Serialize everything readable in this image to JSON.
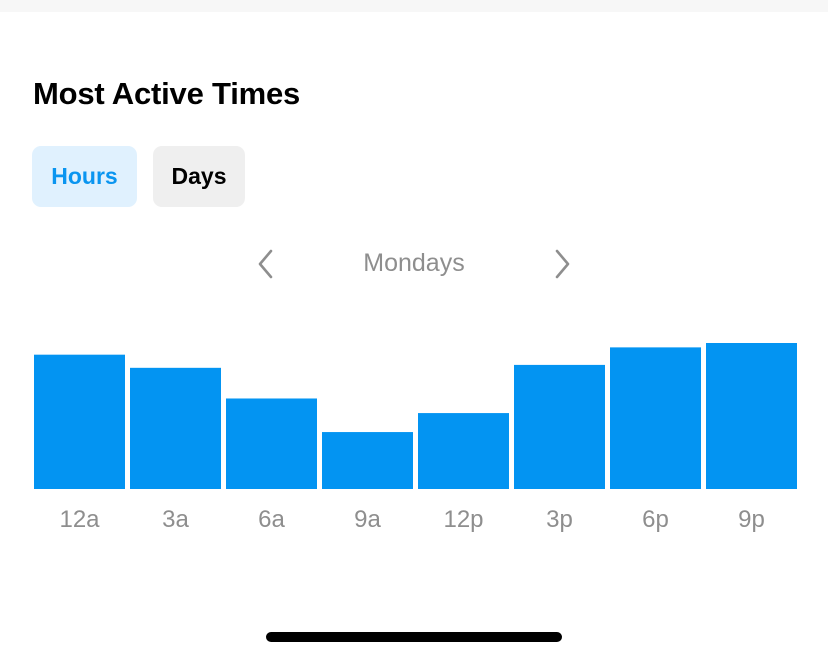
{
  "header": {
    "title": "Most Active Times"
  },
  "segments": {
    "hours_label": "Hours",
    "days_label": "Days",
    "active": "Hours"
  },
  "day_nav": {
    "current_day": "Mondays",
    "prev_icon": "chevron-left-icon",
    "next_icon": "chevron-right-icon"
  },
  "colors": {
    "bar": "#0394f2",
    "accent": "#0a95f0",
    "tick_label": "#8e8e8e",
    "active_segment_bg": "#e0f1fe",
    "inactive_segment_bg": "#efefef"
  },
  "chart_data": {
    "type": "bar",
    "categories": [
      "12a",
      "3a",
      "6a",
      "9a",
      "12p",
      "3p",
      "6p",
      "9p"
    ],
    "values": [
      0.92,
      0.83,
      0.62,
      0.39,
      0.52,
      0.85,
      0.97,
      1.0
    ],
    "ylim": [
      0,
      1
    ],
    "grid": false,
    "legend": "none",
    "y_axis_visible": false
  }
}
